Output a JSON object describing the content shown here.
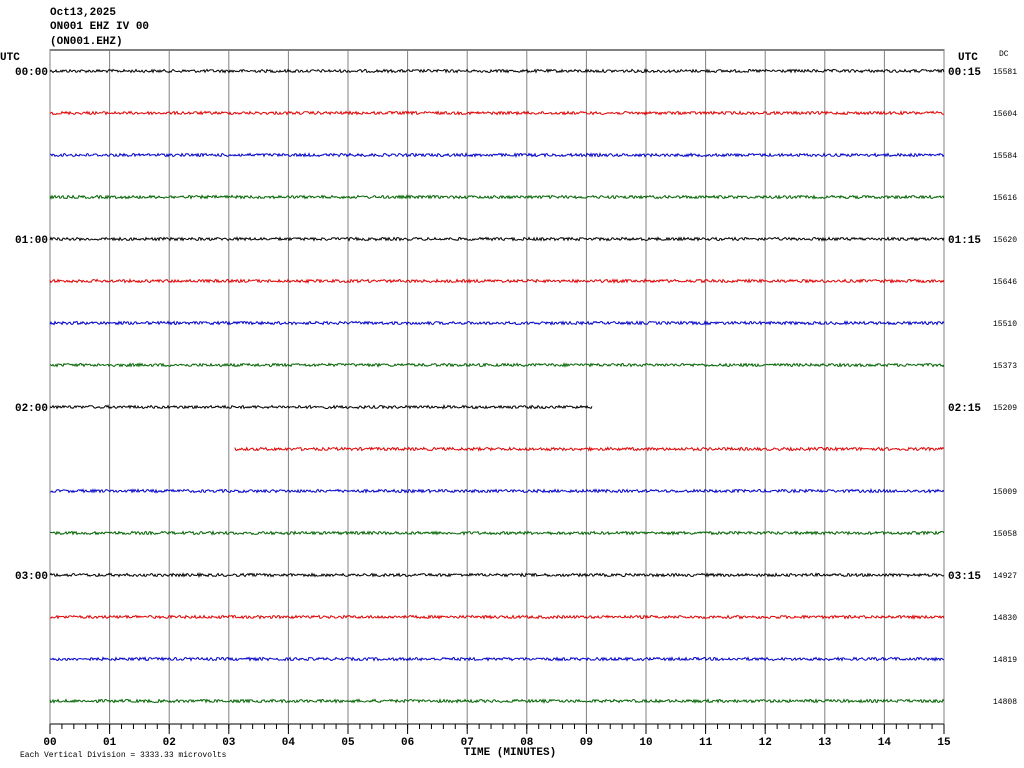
{
  "helicorder": {
    "header": {
      "date": "Oct13,2025",
      "station": "ON001 EHZ IV 00",
      "channel": "(ON001.EHZ)"
    },
    "left_axis_title": "UTC",
    "right_axis_title": "UTC",
    "dc_title": "DC",
    "x_label": "TIME (MINUTES)",
    "footer": "Each Vertical Division = 3333.33 microvolts",
    "xlim": [
      0,
      15
    ],
    "xticks": [
      {
        "value": 0,
        "label": "00"
      },
      {
        "value": 1,
        "label": "01"
      },
      {
        "value": 2,
        "label": "02"
      },
      {
        "value": 3,
        "label": "03"
      },
      {
        "value": 4,
        "label": "04"
      },
      {
        "value": 5,
        "label": "05"
      },
      {
        "value": 6,
        "label": "06"
      },
      {
        "value": 7,
        "label": "07"
      },
      {
        "value": 8,
        "label": "08"
      },
      {
        "value": 9,
        "label": "09"
      },
      {
        "value": 10,
        "label": "10"
      },
      {
        "value": 11,
        "label": "11"
      },
      {
        "value": 12,
        "label": "12"
      },
      {
        "value": 13,
        "label": "13"
      },
      {
        "value": 14,
        "label": "14"
      },
      {
        "value": 15,
        "label": "15"
      }
    ],
    "rows": [
      {
        "color": "#000000",
        "start": 0,
        "end": 15,
        "left_label": "00:00",
        "right_label": "00:15",
        "dc": 15581
      },
      {
        "color": "#e00000",
        "start": 0,
        "end": 15,
        "left_label": null,
        "right_label": null,
        "dc": 15604
      },
      {
        "color": "#0000c8",
        "start": 0,
        "end": 15,
        "left_label": null,
        "right_label": null,
        "dc": 15584
      },
      {
        "color": "#006400",
        "start": 0,
        "end": 15,
        "left_label": null,
        "right_label": null,
        "dc": 15616
      },
      {
        "color": "#000000",
        "start": 0,
        "end": 15,
        "left_label": "01:00",
        "right_label": "01:15",
        "dc": 15620
      },
      {
        "color": "#e00000",
        "start": 0,
        "end": 15,
        "left_label": null,
        "right_label": null,
        "dc": 15646
      },
      {
        "color": "#0000c8",
        "start": 0,
        "end": 15,
        "left_label": null,
        "right_label": null,
        "dc": 15510
      },
      {
        "color": "#006400",
        "start": 0,
        "end": 15,
        "left_label": null,
        "right_label": null,
        "dc": 15373
      },
      {
        "color": "#000000",
        "start": 0,
        "end": 9.1,
        "left_label": "02:00",
        "right_label": "02:15",
        "dc": 15209
      },
      {
        "color": "#e00000",
        "start": 3.1,
        "end": 15,
        "left_label": null,
        "right_label": null,
        "dc": null
      },
      {
        "color": "#0000c8",
        "start": 0,
        "end": 15,
        "left_label": null,
        "right_label": null,
        "dc": 15009
      },
      {
        "color": "#006400",
        "start": 0,
        "end": 15,
        "left_label": null,
        "right_label": null,
        "dc": 15058
      },
      {
        "color": "#000000",
        "start": 0,
        "end": 15,
        "left_label": "03:00",
        "right_label": "03:15",
        "dc": 14927
      },
      {
        "color": "#e00000",
        "start": 0,
        "end": 15,
        "left_label": null,
        "right_label": null,
        "dc": 14830
      },
      {
        "color": "#0000c8",
        "start": 0,
        "end": 15,
        "left_label": null,
        "right_label": null,
        "dc": 14819
      },
      {
        "color": "#006400",
        "start": 0,
        "end": 15,
        "left_label": null,
        "right_label": null,
        "dc": 14808
      }
    ]
  }
}
